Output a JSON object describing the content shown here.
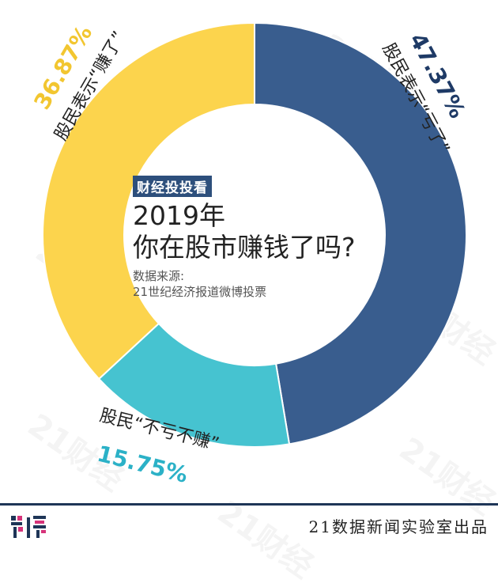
{
  "chart_data": {
    "type": "pie",
    "donut": true,
    "slices": [
      {
        "label": "股民表示“亏了”",
        "value": 47.37,
        "value_text": "47.37%",
        "color": "#395d8e",
        "label_color": "#1e3a66"
      },
      {
        "label": "股民“不亏不赚”",
        "value": 15.75,
        "value_text": "15.75%",
        "color": "#46c3d0",
        "label_color": "#2bb1c7"
      },
      {
        "label": "股民表示“赚了”",
        "value": 36.87,
        "value_text": "36.87%",
        "color": "#fcd44d",
        "label_color": "#f2c630"
      }
    ]
  },
  "center": {
    "tag": "财经投投看",
    "title_line1": "2019年",
    "title_line2": "你在股市赚钱了吗?",
    "source_line1": "数据来源:",
    "source_line2": "21世纪经济报道微博投票"
  },
  "footer": {
    "credit": "21数据新闻实验室出品",
    "logo_colors": [
      "#1e3557",
      "#d6337a"
    ],
    "watermark": "21财经"
  }
}
